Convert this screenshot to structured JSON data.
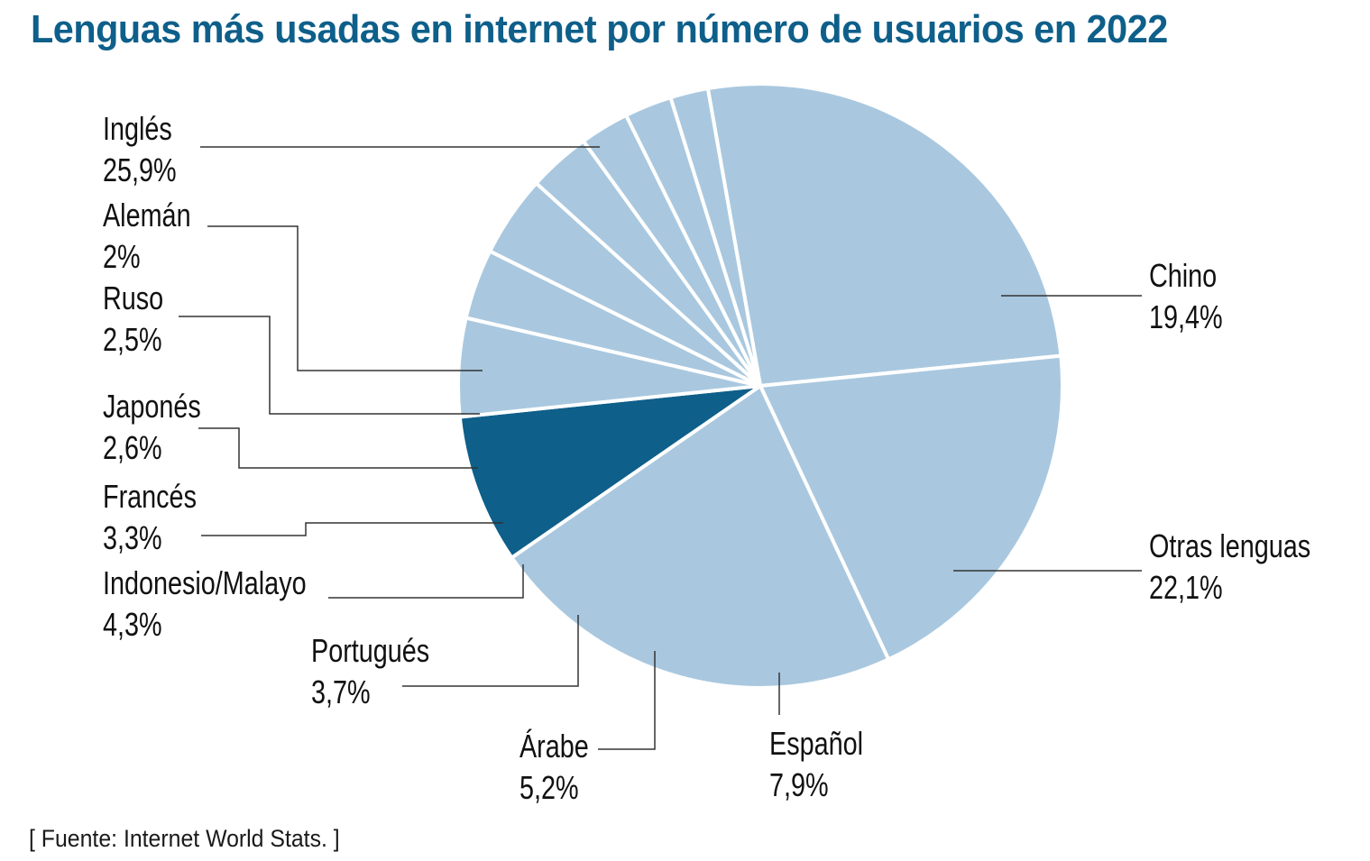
{
  "chart_data": {
    "type": "pie",
    "title": "Lenguas más usadas en internet por número de usuarios en 2022",
    "source": "[ Fuente: Internet World Stats. ]",
    "unit": "%",
    "slices": [
      {
        "label": "Inglés",
        "value": 25.9,
        "display": "25,9%",
        "color": "#a9c8df"
      },
      {
        "label": "Chino",
        "value": 19.4,
        "display": "19,4%",
        "color": "#a9c8df"
      },
      {
        "label": "Otras lenguas",
        "value": 22.1,
        "display": "22,1%",
        "color": "#a9c8df"
      },
      {
        "label": "Español",
        "value": 7.9,
        "display": "7,9%",
        "color": "#0e5f8a"
      },
      {
        "label": "Árabe",
        "value": 5.2,
        "display": "5,2%",
        "color": "#a9c8df"
      },
      {
        "label": "Portugués",
        "value": 3.7,
        "display": "3,7%",
        "color": "#a9c8df"
      },
      {
        "label": "Indonesio/Malayo",
        "value": 4.3,
        "display": "4,3%",
        "color": "#a9c8df"
      },
      {
        "label": "Francés",
        "value": 3.3,
        "display": "3,3%",
        "color": "#a9c8df"
      },
      {
        "label": "Japonés",
        "value": 2.6,
        "display": "2,6%",
        "color": "#a9c8df"
      },
      {
        "label": "Ruso",
        "value": 2.5,
        "display": "2,5%",
        "color": "#a9c8df"
      },
      {
        "label": "Alemán",
        "value": 2.0,
        "display": "2%",
        "color": "#a9c8df"
      }
    ],
    "highlight": "Español",
    "legend": "none (direct labels)"
  },
  "colors": {
    "title": "#0e5f8a",
    "slice_default": "#a9c8df",
    "slice_highlight": "#0e5f8a",
    "leader_line": "#333333"
  }
}
